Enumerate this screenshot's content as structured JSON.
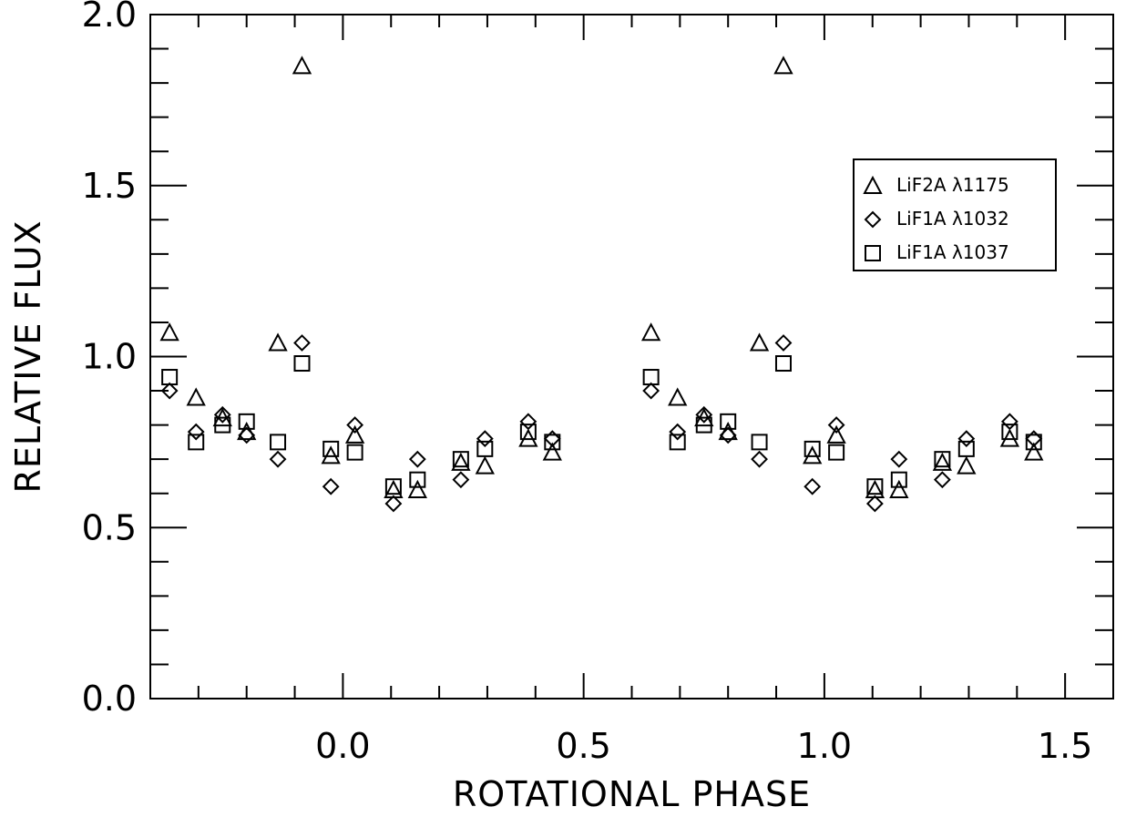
{
  "chart_data": {
    "type": "scatter",
    "xlabel": "ROTATIONAL PHASE",
    "ylabel": "RELATIVE FLUX",
    "xlim": [
      -0.4,
      1.6
    ],
    "ylim": [
      0.0,
      2.0
    ],
    "x_ticks": [
      0.0,
      0.5,
      1.0,
      1.5
    ],
    "x_tick_labels": [
      "0.0",
      "0.5",
      "1.0",
      "1.5"
    ],
    "y_ticks": [
      0.0,
      0.5,
      1.0,
      1.5,
      2.0
    ],
    "y_tick_labels": [
      "0.0",
      "0.5",
      "1.0",
      "1.5",
      "2.0"
    ],
    "grid": false,
    "legend_position": "top-right",
    "series": [
      {
        "name": "LiF2A λ1175",
        "marker": "triangle",
        "points": [
          [
            -0.36,
            1.07
          ],
          [
            -0.305,
            0.88
          ],
          [
            -0.25,
            0.82
          ],
          [
            -0.2,
            0.78
          ],
          [
            -0.135,
            1.04
          ],
          [
            -0.085,
            1.85
          ],
          [
            -0.025,
            0.71
          ],
          [
            0.025,
            0.77
          ],
          [
            0.105,
            0.61
          ],
          [
            0.155,
            0.61
          ],
          [
            0.245,
            0.69
          ],
          [
            0.295,
            0.68
          ],
          [
            0.385,
            0.76
          ],
          [
            0.435,
            0.72
          ],
          [
            0.64,
            1.07
          ],
          [
            0.695,
            0.88
          ],
          [
            0.75,
            0.82
          ],
          [
            0.8,
            0.78
          ],
          [
            0.865,
            1.04
          ],
          [
            0.915,
            1.85
          ],
          [
            0.975,
            0.71
          ],
          [
            1.025,
            0.77
          ],
          [
            1.105,
            0.61
          ],
          [
            1.155,
            0.61
          ],
          [
            1.245,
            0.69
          ],
          [
            1.295,
            0.68
          ],
          [
            1.385,
            0.76
          ],
          [
            1.435,
            0.72
          ]
        ]
      },
      {
        "name": "LiF1A λ1032",
        "marker": "diamond",
        "points": [
          [
            -0.36,
            0.9
          ],
          [
            -0.305,
            0.78
          ],
          [
            -0.25,
            0.83
          ],
          [
            -0.2,
            0.77
          ],
          [
            -0.135,
            0.7
          ],
          [
            -0.085,
            1.04
          ],
          [
            -0.025,
            0.62
          ],
          [
            0.025,
            0.8
          ],
          [
            0.105,
            0.57
          ],
          [
            0.155,
            0.7
          ],
          [
            0.245,
            0.64
          ],
          [
            0.295,
            0.76
          ],
          [
            0.385,
            0.81
          ],
          [
            0.435,
            0.76
          ],
          [
            0.64,
            0.9
          ],
          [
            0.695,
            0.78
          ],
          [
            0.75,
            0.83
          ],
          [
            0.8,
            0.77
          ],
          [
            0.865,
            0.7
          ],
          [
            0.915,
            1.04
          ],
          [
            0.975,
            0.62
          ],
          [
            1.025,
            0.8
          ],
          [
            1.105,
            0.57
          ],
          [
            1.155,
            0.7
          ],
          [
            1.245,
            0.64
          ],
          [
            1.295,
            0.76
          ],
          [
            1.385,
            0.81
          ],
          [
            1.435,
            0.76
          ]
        ]
      },
      {
        "name": "LiF1A λ1037",
        "marker": "square",
        "points": [
          [
            -0.36,
            0.94
          ],
          [
            -0.305,
            0.75
          ],
          [
            -0.25,
            0.8
          ],
          [
            -0.2,
            0.81
          ],
          [
            -0.135,
            0.75
          ],
          [
            -0.085,
            0.98
          ],
          [
            -0.025,
            0.73
          ],
          [
            0.025,
            0.72
          ],
          [
            0.105,
            0.62
          ],
          [
            0.155,
            0.64
          ],
          [
            0.245,
            0.7
          ],
          [
            0.295,
            0.73
          ],
          [
            0.385,
            0.78
          ],
          [
            0.435,
            0.75
          ],
          [
            0.64,
            0.94
          ],
          [
            0.695,
            0.75
          ],
          [
            0.75,
            0.8
          ],
          [
            0.8,
            0.81
          ],
          [
            0.865,
            0.75
          ],
          [
            0.915,
            0.98
          ],
          [
            0.975,
            0.73
          ],
          [
            1.025,
            0.72
          ],
          [
            1.105,
            0.62
          ],
          [
            1.155,
            0.64
          ],
          [
            1.245,
            0.7
          ],
          [
            1.295,
            0.73
          ],
          [
            1.385,
            0.78
          ],
          [
            1.435,
            0.75
          ]
        ]
      }
    ]
  }
}
